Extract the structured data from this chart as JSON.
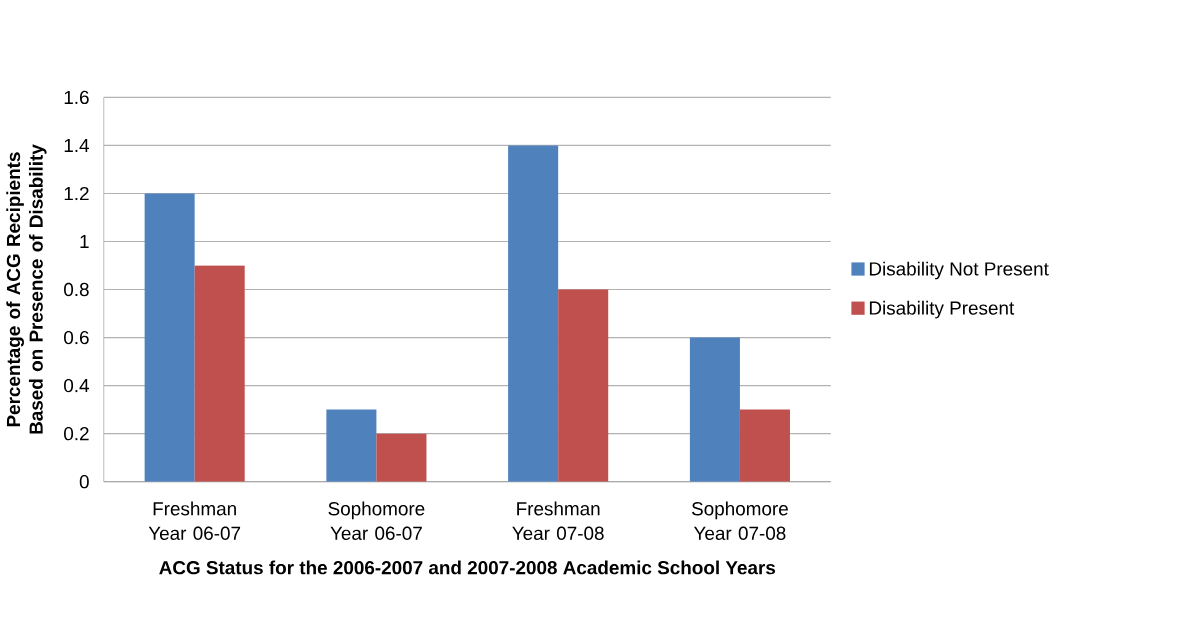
{
  "chart_data": {
    "type": "bar",
    "xlabel": "ACG Status for the 2006-2007 and 2007-2008 Academic School Years",
    "ylabel": "Percentage of ACG Recipients Based on Presence of Disability",
    "categories": [
      "Freshman Year 06-07",
      "Sophomore Year 06-07",
      "Freshman Year 07-08",
      "Sophomore Year 07-08"
    ],
    "series": [
      {
        "name": "Disability Not Present",
        "color": "#4f81bd",
        "values": [
          1.2,
          0.3,
          1.4,
          0.6
        ]
      },
      {
        "name": "Disability Present",
        "color": "#c0504d",
        "values": [
          0.9,
          0.2,
          0.8,
          0.3
        ]
      }
    ],
    "ylim": [
      0,
      1.6
    ],
    "yticks": [
      0,
      0.2,
      0.4,
      0.6,
      0.8,
      1,
      1.2,
      1.4,
      1.6
    ],
    "grid": "y",
    "legend": "right"
  }
}
